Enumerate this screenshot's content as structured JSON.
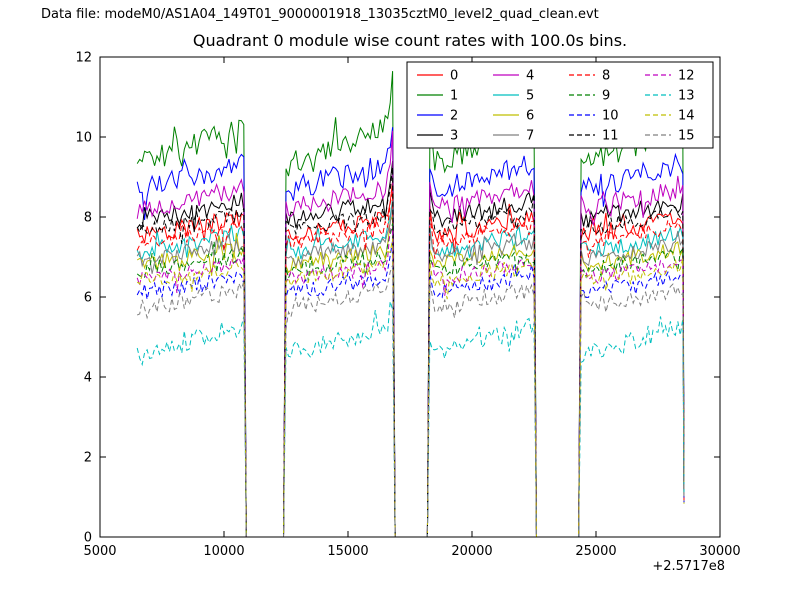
{
  "header": {
    "text": "Data file: modeM0/AS1A04_149T01_9000001918_13035cztM0_level2_quad_clean.evt"
  },
  "chart_data": {
    "type": "line",
    "title": "Quadrant 0 module wise count rates with 100.0s bins.",
    "xlabel": "",
    "ylabel": "",
    "x_offset_label": "+2.5717e8",
    "xlim": [
      5000,
      30000
    ],
    "ylim": [
      0,
      12
    ],
    "xticks": [
      5000,
      10000,
      15000,
      20000,
      25000,
      30000
    ],
    "yticks": [
      0,
      2,
      4,
      6,
      8,
      10,
      12
    ],
    "bin_seconds": 100,
    "sample_step": 100,
    "x_start": 6500,
    "x_end": 28500,
    "on_ranges": [
      [
        6500,
        10850
      ],
      [
        12500,
        16850
      ],
      [
        18300,
        22550
      ],
      [
        24400,
        28500
      ]
    ],
    "gap_value": 0,
    "end_drop": {
      "x": 28550,
      "y": 1.0
    },
    "background": "#ffffff",
    "grid": false,
    "legend": {
      "position": "upper center-right",
      "ncol": 4,
      "order": "column-major"
    },
    "series": [
      {
        "label": "0",
        "color": "#ff0000",
        "dash": false,
        "mean_rate": 7.75,
        "noise": 0.22,
        "rise": 0.5
      },
      {
        "label": "1",
        "color": "#008000",
        "dash": false,
        "mean_rate": 9.8,
        "noise": 0.32,
        "rise": 1.0
      },
      {
        "label": "2",
        "color": "#0000ff",
        "dash": false,
        "mean_rate": 9.0,
        "noise": 0.3,
        "rise": 0.7
      },
      {
        "label": "3",
        "color": "#000000",
        "dash": false,
        "mean_rate": 8.15,
        "noise": 0.25,
        "rise": 0.5
      },
      {
        "label": "4",
        "color": "#bf00bf",
        "dash": false,
        "mean_rate": 8.45,
        "noise": 0.25,
        "rise": 0.5
      },
      {
        "label": "5",
        "color": "#00bfbf",
        "dash": false,
        "mean_rate": 7.35,
        "noise": 0.22,
        "rise": 0.5
      },
      {
        "label": "6",
        "color": "#bfbf00",
        "dash": false,
        "mean_rate": 7.0,
        "noise": 0.2,
        "rise": 0.4
      },
      {
        "label": "7",
        "color": "#808080",
        "dash": false,
        "mean_rate": 7.15,
        "noise": 0.22,
        "rise": 0.4
      },
      {
        "label": "8",
        "color": "#ff0000",
        "dash": true,
        "mean_rate": 7.55,
        "noise": 0.2,
        "rise": 0.4
      },
      {
        "label": "9",
        "color": "#008000",
        "dash": true,
        "mean_rate": 6.85,
        "noise": 0.2,
        "rise": 0.4
      },
      {
        "label": "10",
        "color": "#0000ff",
        "dash": true,
        "mean_rate": 6.3,
        "noise": 0.2,
        "rise": 0.4
      },
      {
        "label": "11",
        "color": "#000000",
        "dash": true,
        "mean_rate": 7.9,
        "noise": 0.2,
        "rise": 0.4
      },
      {
        "label": "12",
        "color": "#bf00bf",
        "dash": true,
        "mean_rate": 6.65,
        "noise": 0.2,
        "rise": 0.4
      },
      {
        "label": "13",
        "color": "#00bfbf",
        "dash": true,
        "mean_rate": 4.9,
        "noise": 0.25,
        "rise": 0.8
      },
      {
        "label": "14",
        "color": "#bfbf00",
        "dash": true,
        "mean_rate": 6.6,
        "noise": 0.2,
        "rise": 0.4
      },
      {
        "label": "15",
        "color": "#808080",
        "dash": true,
        "mean_rate": 5.95,
        "noise": 0.22,
        "rise": 0.5
      }
    ]
  }
}
